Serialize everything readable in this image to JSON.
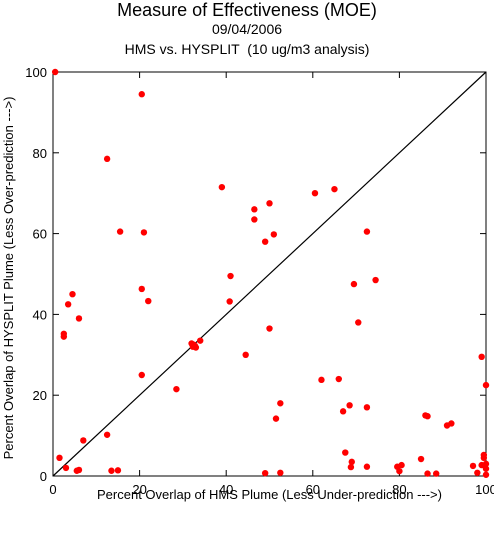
{
  "chart_data": {
    "type": "scatter",
    "title": "Measure of Effectiveness (MOE)",
    "date": "09/04/2006",
    "subtitle": "HMS vs. HYSPLIT  (10 ug/m3 analysis)",
    "xlabel": "Percent Overlap of HMS Plume (Less Under-prediction --->)",
    "ylabel": "Percent Overlap of HYSPLIT Plume (Less Over-prediction --->)",
    "xlim": [
      0,
      100
    ],
    "ylim": [
      0,
      100
    ],
    "x_ticks": [
      "0",
      "20",
      "40",
      "60",
      "80",
      "100"
    ],
    "y_ticks": [
      "0",
      "20",
      "40",
      "60",
      "80",
      "100"
    ],
    "reference_line": "y = x",
    "point_color": "#ff0000",
    "points": [
      [
        0.5,
        100
      ],
      [
        20.5,
        94.5
      ],
      [
        12.5,
        78.5
      ],
      [
        39,
        71.5
      ],
      [
        65,
        71
      ],
      [
        60.5,
        70
      ],
      [
        50,
        67.5
      ],
      [
        46.5,
        66
      ],
      [
        46.5,
        63.5
      ],
      [
        15.5,
        60.5
      ],
      [
        21,
        60.3
      ],
      [
        51,
        59.8
      ],
      [
        72.5,
        60.5
      ],
      [
        49,
        58
      ],
      [
        41,
        49.5
      ],
      [
        74.5,
        48.5
      ],
      [
        69.5,
        47.5
      ],
      [
        20.5,
        46.3
      ],
      [
        4.5,
        45
      ],
      [
        22,
        43.3
      ],
      [
        40.8,
        43.2
      ],
      [
        3.5,
        42.5
      ],
      [
        6,
        39
      ],
      [
        70.5,
        38
      ],
      [
        50,
        36.5
      ],
      [
        2.5,
        35.2
      ],
      [
        2.5,
        34.5
      ],
      [
        34,
        33.5
      ],
      [
        32,
        32.8
      ],
      [
        32.5,
        32.5
      ],
      [
        32.3,
        32
      ],
      [
        33,
        31.8
      ],
      [
        32.8,
        32.2
      ],
      [
        44.5,
        30
      ],
      [
        99,
        29.5
      ],
      [
        20.5,
        25
      ],
      [
        66,
        24
      ],
      [
        62,
        23.8
      ],
      [
        100,
        22.5
      ],
      [
        28.5,
        21.5
      ],
      [
        52.5,
        18
      ],
      [
        68.5,
        17.5
      ],
      [
        72.5,
        17
      ],
      [
        67,
        16
      ],
      [
        51.5,
        14.2
      ],
      [
        86,
        15
      ],
      [
        86.5,
        14.8
      ],
      [
        92,
        13
      ],
      [
        91,
        12.5
      ],
      [
        12.5,
        10.2
      ],
      [
        7,
        8.8
      ],
      [
        67.5,
        5.8
      ],
      [
        99.5,
        5.2
      ],
      [
        99.5,
        4.5
      ],
      [
        1.5,
        4.5
      ],
      [
        85,
        4.2
      ],
      [
        69,
        3.5
      ],
      [
        100,
        3
      ],
      [
        99,
        2.7
      ],
      [
        97,
        2.5
      ],
      [
        80.5,
        2.7
      ],
      [
        79.5,
        2.3
      ],
      [
        72.5,
        2.3
      ],
      [
        68.8,
        2.2
      ],
      [
        3,
        2
      ],
      [
        6,
        1.5
      ],
      [
        5.5,
        1.3
      ],
      [
        13.5,
        1.3
      ],
      [
        15,
        1.4
      ],
      [
        100,
        1.8
      ],
      [
        80,
        1.2
      ],
      [
        98,
        0.8
      ],
      [
        49,
        0.7
      ],
      [
        52.5,
        0.8
      ],
      [
        86.5,
        0.6
      ],
      [
        88.5,
        0.6
      ],
      [
        100,
        0.3
      ]
    ]
  }
}
